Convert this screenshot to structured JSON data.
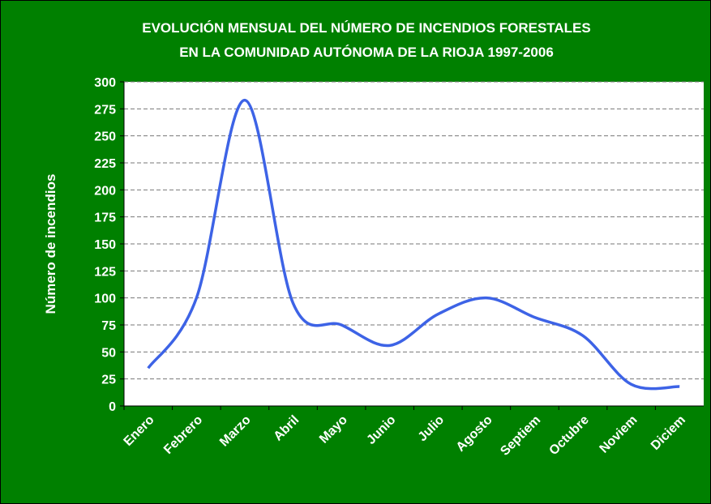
{
  "chart_data": {
    "type": "line",
    "title": [
      "EVOLUCIÓN MENSUAL DEL NÚMERO DE INCENDIOS FORESTALES",
      "EN LA COMUNIDAD AUTÓNOMA DE LA RIOJA  1997-2006"
    ],
    "y_label": "Número de incendios",
    "categories": [
      "Enero",
      "Febrero",
      "Marzo",
      "Abril",
      "Mayo",
      "Junio",
      "Julio",
      "Agosto",
      "Septiem",
      "Octubre",
      "Noviem",
      "Diciem"
    ],
    "series": [
      {
        "color": "#3d63e6",
        "values": [
          35,
          100,
          283,
          95,
          75,
          56,
          85,
          100,
          82,
          65,
          20,
          18
        ]
      }
    ],
    "ylim": [
      0,
      300
    ],
    "yticks": [
      0,
      25,
      50,
      75,
      100,
      125,
      150,
      175,
      200,
      225,
      250,
      275,
      300
    ],
    "grid": true
  }
}
